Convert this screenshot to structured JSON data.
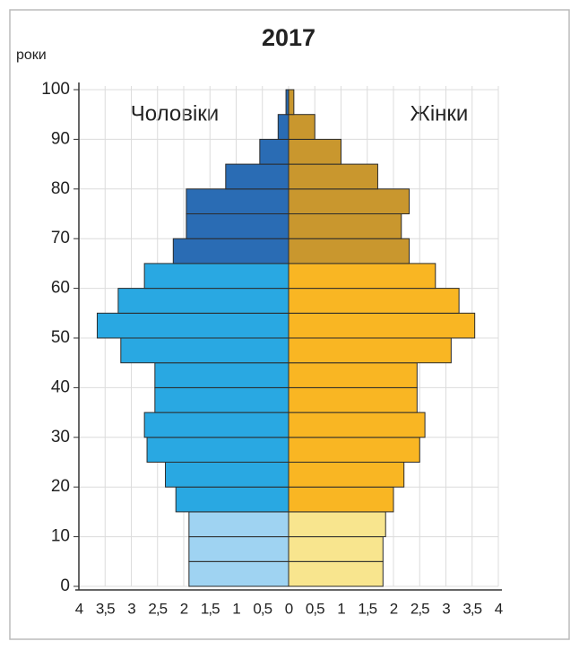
{
  "chart_data": {
    "type": "pyramid",
    "title": "2017",
    "y_label": "роки",
    "y": [
      0,
      5,
      10,
      15,
      20,
      25,
      30,
      35,
      40,
      45,
      50,
      55,
      60,
      65,
      70,
      75,
      80,
      85,
      90,
      95
    ],
    "series": [
      {
        "name": "Чоловіки",
        "side": "left",
        "values": [
          1.9,
          1.9,
          1.9,
          2.15,
          2.35,
          2.7,
          2.75,
          2.55,
          2.55,
          3.2,
          3.65,
          3.25,
          2.75,
          2.2,
          1.95,
          1.95,
          1.2,
          0.55,
          0.2,
          0.05
        ],
        "colors": [
          "#9fd3f2",
          "#9fd3f2",
          "#9fd3f2",
          "#29a8e2",
          "#29a8e2",
          "#29a8e2",
          "#29a8e2",
          "#29a8e2",
          "#29a8e2",
          "#29a8e2",
          "#29a8e2",
          "#29a8e2",
          "#29a8e2",
          "#2a6cb4",
          "#2a6cb4",
          "#2a6cb4",
          "#2a6cb4",
          "#2a6cb4",
          "#2a6cb4",
          "#2a6cb4"
        ]
      },
      {
        "name": "Жінки",
        "side": "right",
        "values": [
          1.8,
          1.8,
          1.85,
          2.0,
          2.2,
          2.5,
          2.6,
          2.45,
          2.45,
          3.1,
          3.55,
          3.25,
          2.8,
          2.3,
          2.15,
          2.3,
          1.7,
          1.0,
          0.5,
          0.1
        ],
        "colors": [
          "#f8e58e",
          "#f8e58e",
          "#f8e58e",
          "#f9b623",
          "#f9b623",
          "#f9b623",
          "#f9b623",
          "#f9b623",
          "#f9b623",
          "#f9b623",
          "#f9b623",
          "#f9b623",
          "#f9b623",
          "#c9972e",
          "#c9972e",
          "#c9972e",
          "#c9972e",
          "#c9972e",
          "#c9972e",
          "#c9972e"
        ]
      }
    ],
    "xlim": [
      -4,
      4
    ],
    "xticks": [
      {
        "value": -4,
        "label": "4"
      },
      {
        "value": -3.5,
        "label": "3,5"
      },
      {
        "value": -3,
        "label": "3"
      },
      {
        "value": -2.5,
        "label": "2,5"
      },
      {
        "value": -2,
        "label": "2"
      },
      {
        "value": -1.5,
        "label": "1,5"
      },
      {
        "value": -1,
        "label": "1"
      },
      {
        "value": -0.5,
        "label": "0,5"
      },
      0,
      {
        "value": 0.5,
        "label": "0,5"
      },
      1,
      {
        "value": 1.5,
        "label": "1,5"
      },
      2,
      {
        "value": 2.5,
        "label": "2,5"
      },
      3,
      {
        "value": 3.5,
        "label": "3,5"
      },
      4
    ],
    "ylim": [
      0,
      100
    ],
    "yticks": [
      0,
      10,
      20,
      30,
      40,
      50,
      60,
      70,
      80,
      90,
      100
    ],
    "grid": true
  }
}
